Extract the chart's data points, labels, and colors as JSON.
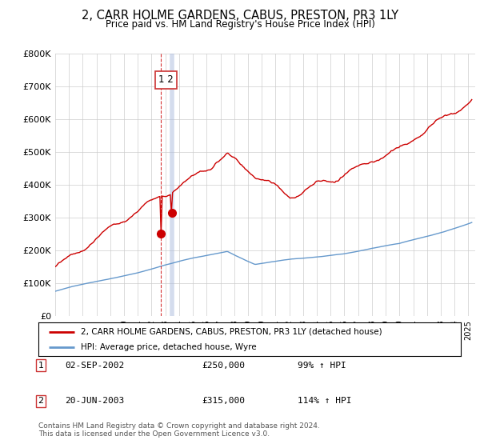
{
  "title": "2, CARR HOLME GARDENS, CABUS, PRESTON, PR3 1LY",
  "subtitle": "Price paid vs. HM Land Registry's House Price Index (HPI)",
  "ylabel_ticks": [
    "£0",
    "£100K",
    "£200K",
    "£300K",
    "£400K",
    "£500K",
    "£600K",
    "£700K",
    "£800K"
  ],
  "ylim": [
    0,
    800000
  ],
  "xlim_start": 1995.0,
  "xlim_end": 2025.5,
  "transaction1_date": 2002.67,
  "transaction1_price": 250000,
  "transaction2_date": 2003.47,
  "transaction2_price": 315000,
  "legend_line1": "2, CARR HOLME GARDENS, CABUS, PRESTON, PR3 1LY (detached house)",
  "legend_line2": "HPI: Average price, detached house, Wyre",
  "table_row1": [
    "1",
    "02-SEP-2002",
    "£250,000",
    "99% ↑ HPI"
  ],
  "table_row2": [
    "2",
    "20-JUN-2003",
    "£315,000",
    "114% ↑ HPI"
  ],
  "footer": "Contains HM Land Registry data © Crown copyright and database right 2024.\nThis data is licensed under the Open Government Licence v3.0.",
  "hpi_color": "#6699cc",
  "price_color": "#cc0000",
  "grid_color": "#cccccc"
}
